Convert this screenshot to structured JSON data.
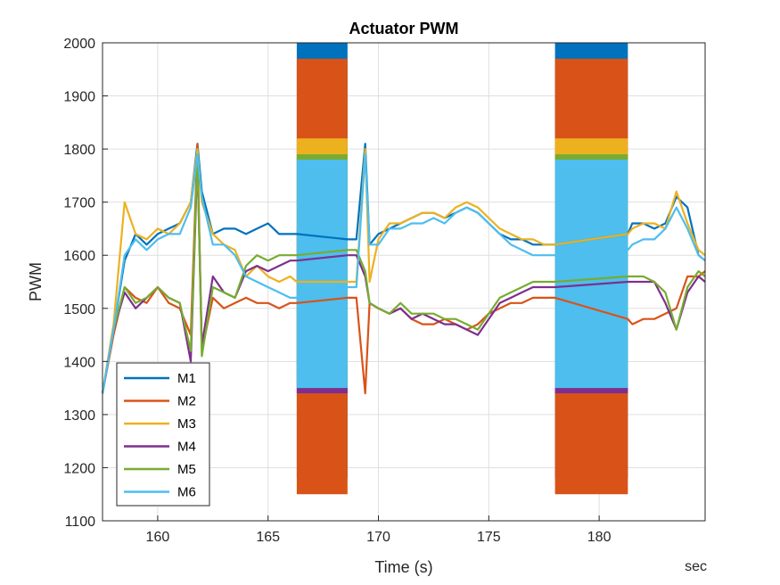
{
  "chart_data": {
    "type": "line",
    "title": "Actuator PWM",
    "xlabel": "Time (s)",
    "ylabel": "PWM",
    "x_unit_label": "sec",
    "xlim": [
      157.5,
      184.8
    ],
    "ylim": [
      1100,
      2000
    ],
    "xticks": [
      160,
      165,
      170,
      175,
      180
    ],
    "yticks": [
      1100,
      1200,
      1300,
      1400,
      1500,
      1600,
      1700,
      1800,
      1900,
      2000
    ],
    "grid": true,
    "legend_position": "bottom-left",
    "oscillation_intervals": [
      [
        166.3,
        168.6
      ],
      [
        178.0,
        181.3
      ]
    ],
    "series": [
      {
        "name": "M1",
        "color": "#0072BD",
        "x": [
          157.5,
          158.0,
          158.5,
          159.0,
          159.5,
          160.0,
          160.5,
          161.0,
          161.5,
          161.8,
          162.0,
          162.5,
          163.0,
          163.5,
          164.0,
          164.5,
          165.0,
          165.5,
          166.0,
          166.3,
          168.6,
          169.0,
          169.4,
          169.6,
          170.0,
          170.5,
          171.0,
          171.5,
          172.0,
          172.5,
          173.0,
          173.5,
          174.0,
          174.5,
          175.0,
          175.5,
          176.0,
          176.5,
          177.0,
          177.5,
          178.0,
          181.3,
          181.5,
          182.0,
          182.5,
          183.0,
          183.5,
          184.0,
          184.5,
          184.8
        ],
        "y": [
          1340,
          1460,
          1590,
          1640,
          1620,
          1640,
          1650,
          1660,
          1700,
          1810,
          1720,
          1640,
          1650,
          1650,
          1640,
          1650,
          1660,
          1640,
          1640,
          1640,
          1630,
          1630,
          1810,
          1620,
          1640,
          1650,
          1660,
          1670,
          1680,
          1680,
          1670,
          1680,
          1690,
          1680,
          1660,
          1640,
          1630,
          1630,
          1620,
          1620,
          1620,
          1640,
          1660,
          1660,
          1650,
          1660,
          1710,
          1690,
          1600,
          1590
        ],
        "osc": [
          1180,
          2000
        ]
      },
      {
        "name": "M2",
        "color": "#D95319",
        "x": [
          157.5,
          158.0,
          158.5,
          159.0,
          159.5,
          160.0,
          160.5,
          161.0,
          161.5,
          161.8,
          162.0,
          162.5,
          163.0,
          163.5,
          164.0,
          164.5,
          165.0,
          165.5,
          166.0,
          166.3,
          168.6,
          169.0,
          169.4,
          169.6,
          170.0,
          170.5,
          171.0,
          171.5,
          172.0,
          172.5,
          173.0,
          173.5,
          174.0,
          174.5,
          175.0,
          175.5,
          176.0,
          176.5,
          177.0,
          177.5,
          178.0,
          181.3,
          181.5,
          182.0,
          182.5,
          183.0,
          183.5,
          184.0,
          184.5,
          184.8
        ],
        "y": [
          1340,
          1450,
          1540,
          1520,
          1510,
          1540,
          1510,
          1500,
          1450,
          1810,
          1420,
          1520,
          1500,
          1510,
          1520,
          1510,
          1510,
          1500,
          1510,
          1510,
          1520,
          1520,
          1340,
          1510,
          1500,
          1490,
          1500,
          1480,
          1470,
          1470,
          1480,
          1470,
          1460,
          1470,
          1490,
          1500,
          1510,
          1510,
          1520,
          1520,
          1520,
          1480,
          1470,
          1480,
          1480,
          1490,
          1500,
          1560,
          1560,
          1570
        ],
        "osc": [
          1150,
          1970
        ]
      },
      {
        "name": "M3",
        "color": "#EDB120",
        "x": [
          157.5,
          158.0,
          158.5,
          159.0,
          159.5,
          160.0,
          160.5,
          161.0,
          161.5,
          161.8,
          162.0,
          162.5,
          163.0,
          163.5,
          164.0,
          164.5,
          165.0,
          165.5,
          166.0,
          166.3,
          168.6,
          169.0,
          169.4,
          169.6,
          170.0,
          170.5,
          171.0,
          171.5,
          172.0,
          172.5,
          173.0,
          173.5,
          174.0,
          174.5,
          175.0,
          175.5,
          176.0,
          176.5,
          177.0,
          177.5,
          178.0,
          181.3,
          181.5,
          182.0,
          182.5,
          183.0,
          183.5,
          184.0,
          184.5,
          184.8
        ],
        "y": [
          1340,
          1470,
          1700,
          1640,
          1630,
          1650,
          1640,
          1660,
          1700,
          1800,
          1700,
          1640,
          1620,
          1610,
          1560,
          1580,
          1560,
          1550,
          1560,
          1550,
          1550,
          1550,
          1800,
          1550,
          1630,
          1660,
          1660,
          1670,
          1680,
          1680,
          1670,
          1690,
          1700,
          1690,
          1670,
          1650,
          1640,
          1630,
          1630,
          1620,
          1620,
          1640,
          1650,
          1660,
          1660,
          1650,
          1720,
          1660,
          1610,
          1600
        ],
        "osc": [
          1380,
          1820
        ]
      },
      {
        "name": "M4",
        "color": "#7E2F8E",
        "x": [
          157.5,
          158.0,
          158.5,
          159.0,
          159.5,
          160.0,
          160.5,
          161.0,
          161.5,
          161.8,
          162.0,
          162.5,
          163.0,
          163.5,
          164.0,
          164.5,
          165.0,
          165.5,
          166.0,
          166.3,
          168.6,
          169.0,
          169.4,
          169.6,
          170.0,
          170.5,
          171.0,
          171.5,
          172.0,
          172.5,
          173.0,
          173.5,
          174.0,
          174.5,
          175.0,
          175.5,
          176.0,
          176.5,
          177.0,
          177.5,
          178.0,
          181.3,
          181.5,
          182.0,
          182.5,
          183.0,
          183.5,
          184.0,
          184.5,
          184.8
        ],
        "y": [
          1340,
          1460,
          1530,
          1500,
          1520,
          1540,
          1520,
          1510,
          1400,
          1780,
          1430,
          1560,
          1530,
          1520,
          1570,
          1580,
          1570,
          1580,
          1590,
          1590,
          1600,
          1600,
          1560,
          1510,
          1500,
          1490,
          1500,
          1480,
          1490,
          1480,
          1470,
          1470,
          1460,
          1450,
          1480,
          1510,
          1520,
          1530,
          1540,
          1540,
          1540,
          1550,
          1550,
          1550,
          1550,
          1510,
          1460,
          1530,
          1560,
          1550
        ],
        "osc": [
          1340,
          1650
        ]
      },
      {
        "name": "M5",
        "color": "#77AC30",
        "x": [
          157.5,
          158.0,
          158.5,
          159.0,
          159.5,
          160.0,
          160.5,
          161.0,
          161.5,
          161.8,
          162.0,
          162.5,
          163.0,
          163.5,
          164.0,
          164.5,
          165.0,
          165.5,
          166.0,
          166.3,
          168.6,
          169.0,
          169.4,
          169.6,
          170.0,
          170.5,
          171.0,
          171.5,
          172.0,
          172.5,
          173.0,
          173.5,
          174.0,
          174.5,
          175.0,
          175.5,
          176.0,
          176.5,
          177.0,
          177.5,
          178.0,
          181.3,
          181.5,
          182.0,
          182.5,
          183.0,
          183.5,
          184.0,
          184.5,
          184.8
        ],
        "y": [
          1340,
          1460,
          1540,
          1510,
          1520,
          1540,
          1520,
          1510,
          1420,
          1790,
          1410,
          1540,
          1530,
          1520,
          1580,
          1600,
          1590,
          1600,
          1600,
          1600,
          1610,
          1610,
          1570,
          1510,
          1500,
          1490,
          1510,
          1490,
          1490,
          1490,
          1480,
          1480,
          1470,
          1460,
          1490,
          1520,
          1530,
          1540,
          1550,
          1550,
          1550,
          1560,
          1560,
          1560,
          1550,
          1530,
          1460,
          1540,
          1570,
          1560
        ],
        "osc": [
          1360,
          1790
        ]
      },
      {
        "name": "M6",
        "color": "#4DBEEE",
        "x": [
          157.5,
          158.0,
          158.5,
          159.0,
          159.5,
          160.0,
          160.5,
          161.0,
          161.5,
          161.8,
          162.0,
          162.5,
          163.0,
          163.5,
          164.0,
          164.5,
          165.0,
          165.5,
          166.0,
          166.3,
          168.6,
          169.0,
          169.4,
          169.6,
          170.0,
          170.5,
          171.0,
          171.5,
          172.0,
          172.5,
          173.0,
          173.5,
          174.0,
          174.5,
          175.0,
          175.5,
          176.0,
          176.5,
          177.0,
          177.5,
          178.0,
          181.3,
          181.5,
          182.0,
          182.5,
          183.0,
          183.5,
          184.0,
          184.5,
          184.8
        ],
        "y": [
          1340,
          1460,
          1600,
          1630,
          1610,
          1630,
          1640,
          1640,
          1690,
          1790,
          1710,
          1620,
          1620,
          1600,
          1560,
          1550,
          1540,
          1530,
          1520,
          1520,
          1540,
          1540,
          1790,
          1620,
          1620,
          1650,
          1650,
          1660,
          1660,
          1670,
          1660,
          1680,
          1690,
          1680,
          1660,
          1640,
          1620,
          1610,
          1600,
          1600,
          1600,
          1610,
          1620,
          1630,
          1630,
          1650,
          1690,
          1650,
          1600,
          1590
        ],
        "osc": [
          1350,
          1780
        ]
      }
    ]
  }
}
